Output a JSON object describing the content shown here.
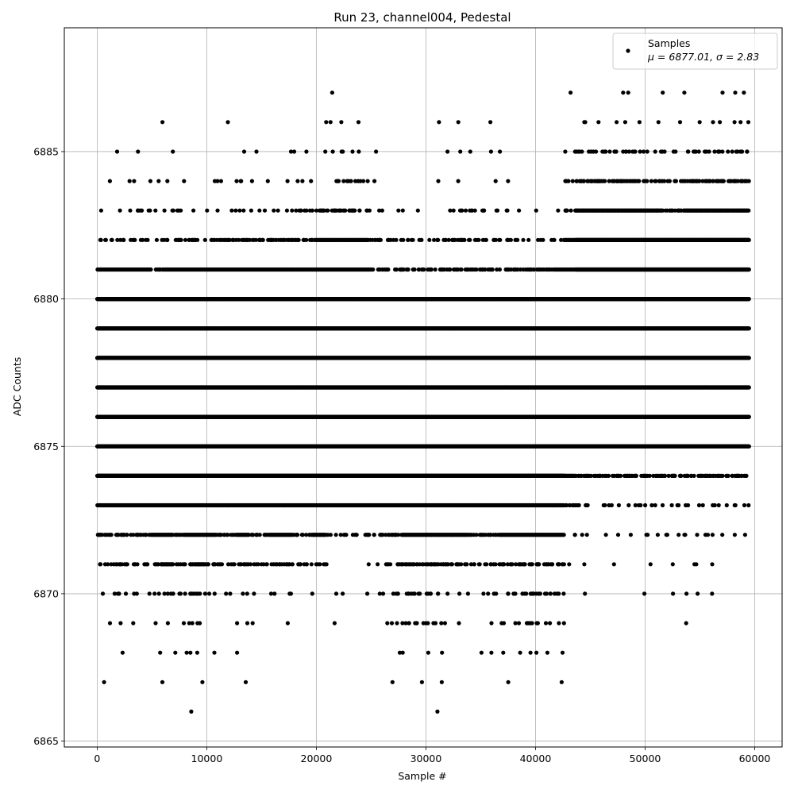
{
  "chart_data": {
    "type": "scatter",
    "title": "Run 23, channel004, Pedestal",
    "xlabel": "Sample #",
    "ylabel": "ADC Counts",
    "xlim": [
      -3000,
      62500
    ],
    "ylim": [
      6864.8,
      6889.2
    ],
    "xticks": [
      0,
      10000,
      20000,
      30000,
      40000,
      50000,
      60000
    ],
    "xtick_labels": [
      "0",
      "10000",
      "20000",
      "30000",
      "40000",
      "50000",
      "60000"
    ],
    "yticks": [
      6865,
      6870,
      6875,
      6880,
      6885
    ],
    "ytick_labels": [
      "6865",
      "6870",
      "6875",
      "6880",
      "6885"
    ],
    "grid": true,
    "legend": {
      "position": "upper right",
      "entries": [
        {
          "label": "Samples",
          "stats": "μ = 6877.01, σ = 2.83"
        }
      ]
    },
    "marker_color": "#000000",
    "n_samples": 59500,
    "bands": [
      {
        "y": 6866,
        "density": [
          0,
          0,
          0,
          0,
          0,
          0,
          0,
          0,
          1,
          0,
          0,
          0,
          0,
          0,
          0,
          0,
          0,
          0,
          0,
          0,
          0,
          0,
          0,
          0,
          0,
          0,
          0,
          0,
          0,
          0,
          0,
          1,
          0,
          0,
          0,
          0,
          0,
          0,
          0,
          0,
          0,
          0,
          0,
          0,
          0,
          0,
          0,
          0,
          0,
          0,
          0,
          0,
          0,
          0,
          0,
          0,
          0,
          0,
          0,
          0
        ]
      },
      {
        "y": 6867,
        "density": [
          1,
          0,
          0,
          0,
          0,
          1,
          0,
          0,
          0,
          1,
          0,
          0,
          0,
          1,
          0,
          0,
          0,
          0,
          0,
          0,
          0,
          0,
          0,
          0,
          0,
          0,
          0,
          1,
          0,
          1,
          0,
          1,
          0,
          0,
          0,
          0,
          0,
          1,
          0,
          0,
          0,
          0,
          1,
          0,
          0,
          0,
          0,
          0,
          0,
          0,
          0,
          0,
          0,
          0,
          0,
          0,
          0,
          0,
          0,
          0
        ]
      },
      {
        "y": 6868,
        "density": [
          0,
          0,
          1,
          0,
          0,
          1,
          0,
          1,
          2,
          1,
          1,
          0,
          1,
          0,
          0,
          0,
          0,
          0,
          0,
          0,
          0,
          0,
          0,
          0,
          0,
          0,
          0,
          1,
          1,
          0,
          1,
          1,
          0,
          0,
          0,
          1,
          1,
          1,
          1,
          1,
          1,
          1,
          1,
          0,
          0,
          0,
          0,
          0,
          0,
          0,
          0,
          0,
          0,
          0,
          0,
          0,
          0,
          0,
          0,
          0
        ]
      },
      {
        "y": 6869,
        "density": [
          0,
          1,
          1,
          1,
          0,
          1,
          1,
          1,
          2,
          2,
          0,
          0,
          1,
          1,
          1,
          0,
          0,
          1,
          0,
          0,
          0,
          1,
          0,
          0,
          0,
          0,
          1,
          2,
          3,
          3,
          3,
          2,
          1,
          1,
          0,
          0,
          1,
          2,
          2,
          3,
          3,
          2,
          2,
          0,
          0,
          0,
          0,
          0,
          0,
          0,
          0,
          0,
          0,
          0,
          1,
          0,
          0,
          0,
          0,
          0
        ]
      },
      {
        "y": 6870,
        "density": [
          1,
          2,
          2,
          2,
          1,
          2,
          3,
          2,
          3,
          3,
          2,
          1,
          1,
          2,
          1,
          0,
          2,
          2,
          0,
          1,
          0,
          1,
          1,
          0,
          1,
          0,
          2,
          3,
          3,
          3,
          3,
          2,
          1,
          1,
          1,
          2,
          2,
          2,
          2,
          3,
          4,
          3,
          3,
          0,
          1,
          0,
          0,
          0,
          0,
          0,
          1,
          0,
          1,
          0,
          1,
          1,
          1,
          0,
          0,
          0
        ]
      },
      {
        "y": 6871,
        "density": [
          3,
          3,
          4,
          3,
          3,
          4,
          5,
          3,
          4,
          5,
          4,
          3,
          3,
          4,
          3,
          3,
          4,
          4,
          3,
          3,
          3,
          2,
          0,
          0,
          1,
          1,
          3,
          3,
          4,
          4,
          4,
          4,
          4,
          4,
          3,
          3,
          3,
          4,
          4,
          4,
          4,
          4,
          4,
          1,
          1,
          0,
          0,
          1,
          0,
          0,
          1,
          0,
          1,
          0,
          1,
          1,
          1,
          0,
          0,
          0
        ]
      },
      {
        "y": 6872,
        "density": [
          4,
          4,
          4,
          4,
          4,
          5,
          5,
          4,
          5,
          5,
          5,
          4,
          4,
          5,
          4,
          4,
          5,
          5,
          4,
          4,
          5,
          3,
          3,
          3,
          3,
          3,
          4,
          4,
          5,
          5,
          5,
          5,
          5,
          5,
          4,
          4,
          4,
          5,
          5,
          5,
          5,
          5,
          5,
          2,
          1,
          1,
          1,
          1,
          0,
          1,
          2,
          1,
          2,
          1,
          2,
          2,
          2,
          1,
          1,
          1
        ]
      },
      {
        "y": 6873,
        "density": [
          5,
          5,
          5,
          5,
          5,
          5,
          5,
          5,
          5,
          5,
          5,
          5,
          5,
          5,
          5,
          5,
          5,
          5,
          5,
          5,
          5,
          5,
          5,
          5,
          5,
          5,
          5,
          5,
          5,
          5,
          5,
          5,
          5,
          5,
          5,
          5,
          5,
          5,
          5,
          5,
          5,
          5,
          5,
          4,
          3,
          2,
          2,
          2,
          2,
          2,
          2,
          2,
          2,
          2,
          2,
          2,
          2,
          2,
          2,
          2
        ]
      },
      {
        "y": 6874,
        "density": [
          6,
          6,
          6,
          6,
          6,
          6,
          6,
          6,
          6,
          6,
          6,
          6,
          6,
          6,
          6,
          6,
          6,
          6,
          6,
          6,
          6,
          6,
          6,
          6,
          6,
          6,
          6,
          6,
          6,
          6,
          6,
          6,
          6,
          6,
          6,
          6,
          6,
          6,
          6,
          6,
          6,
          6,
          6,
          5,
          4,
          4,
          4,
          4,
          4,
          4,
          4,
          4,
          4,
          4,
          4,
          4,
          4,
          4,
          4,
          4
        ]
      },
      {
        "y": 6875,
        "density": [
          6,
          6,
          6,
          6,
          6,
          6,
          6,
          6,
          6,
          6,
          6,
          6,
          6,
          6,
          6,
          6,
          6,
          6,
          6,
          6,
          6,
          6,
          6,
          6,
          6,
          6,
          6,
          6,
          6,
          6,
          6,
          6,
          6,
          6,
          6,
          6,
          6,
          6,
          6,
          6,
          6,
          6,
          6,
          6,
          6,
          6,
          6,
          6,
          6,
          6,
          6,
          6,
          6,
          6,
          6,
          6,
          6,
          6,
          6,
          6
        ]
      },
      {
        "y": 6876,
        "density": [
          6,
          6,
          6,
          6,
          6,
          6,
          6,
          6,
          6,
          6,
          6,
          6,
          6,
          6,
          6,
          6,
          6,
          6,
          6,
          6,
          6,
          6,
          6,
          6,
          6,
          6,
          6,
          6,
          6,
          6,
          6,
          6,
          6,
          6,
          6,
          6,
          6,
          6,
          6,
          6,
          6,
          6,
          6,
          6,
          6,
          6,
          6,
          6,
          6,
          6,
          6,
          6,
          6,
          6,
          6,
          6,
          6,
          6,
          6,
          6
        ]
      },
      {
        "y": 6877,
        "density": [
          6,
          6,
          6,
          6,
          6,
          6,
          6,
          6,
          6,
          6,
          6,
          6,
          6,
          6,
          6,
          6,
          6,
          6,
          6,
          6,
          6,
          6,
          6,
          6,
          6,
          6,
          6,
          6,
          6,
          6,
          6,
          6,
          6,
          6,
          6,
          6,
          6,
          6,
          6,
          6,
          6,
          6,
          6,
          6,
          6,
          6,
          6,
          6,
          6,
          6,
          6,
          6,
          6,
          6,
          6,
          6,
          6,
          6,
          6,
          6
        ]
      },
      {
        "y": 6878,
        "density": [
          6,
          6,
          6,
          6,
          6,
          6,
          6,
          6,
          6,
          6,
          6,
          6,
          6,
          6,
          6,
          6,
          6,
          6,
          6,
          6,
          6,
          6,
          6,
          6,
          6,
          6,
          6,
          6,
          6,
          6,
          6,
          6,
          6,
          6,
          6,
          6,
          6,
          6,
          6,
          6,
          6,
          6,
          6,
          6,
          6,
          6,
          6,
          6,
          6,
          6,
          6,
          6,
          6,
          6,
          6,
          6,
          6,
          6,
          6,
          6
        ]
      },
      {
        "y": 6879,
        "density": [
          6,
          6,
          6,
          6,
          6,
          6,
          6,
          6,
          6,
          6,
          6,
          6,
          6,
          6,
          6,
          6,
          6,
          6,
          6,
          6,
          6,
          6,
          6,
          6,
          6,
          6,
          6,
          6,
          6,
          6,
          6,
          6,
          6,
          6,
          6,
          6,
          6,
          6,
          6,
          6,
          6,
          6,
          6,
          6,
          6,
          6,
          6,
          6,
          6,
          6,
          6,
          6,
          6,
          6,
          6,
          6,
          6,
          6,
          6,
          6
        ]
      },
      {
        "y": 6880,
        "density": [
          6,
          6,
          6,
          6,
          6,
          6,
          6,
          6,
          6,
          6,
          6,
          6,
          6,
          6,
          6,
          6,
          6,
          6,
          6,
          6,
          6,
          6,
          6,
          6,
          6,
          6,
          6,
          6,
          6,
          6,
          6,
          6,
          6,
          6,
          6,
          6,
          6,
          6,
          6,
          6,
          6,
          6,
          6,
          6,
          6,
          6,
          6,
          6,
          6,
          6,
          6,
          6,
          6,
          6,
          6,
          6,
          6,
          6,
          6,
          6
        ]
      },
      {
        "y": 6881,
        "density": [
          5,
          5,
          5,
          5,
          5,
          4,
          5,
          5,
          5,
          5,
          5,
          5,
          5,
          5,
          5,
          5,
          5,
          5,
          5,
          5,
          5,
          5,
          5,
          5,
          5,
          4,
          4,
          4,
          4,
          4,
          4,
          4,
          4,
          4,
          4,
          4,
          4,
          4,
          4,
          4,
          4,
          4,
          5,
          5,
          6,
          6,
          6,
          6,
          6,
          6,
          6,
          6,
          6,
          6,
          6,
          6,
          6,
          6,
          6,
          6
        ]
      },
      {
        "y": 6882,
        "density": [
          3,
          3,
          3,
          3,
          3,
          2,
          3,
          4,
          4,
          3,
          3,
          4,
          4,
          4,
          4,
          4,
          4,
          4,
          4,
          4,
          5,
          5,
          5,
          5,
          5,
          4,
          3,
          3,
          3,
          3,
          2,
          3,
          4,
          4,
          3,
          3,
          3,
          3,
          3,
          2,
          2,
          2,
          3,
          5,
          6,
          6,
          6,
          6,
          6,
          6,
          6,
          6,
          6,
          6,
          6,
          6,
          6,
          6,
          6,
          6
        ]
      },
      {
        "y": 6883,
        "density": [
          1,
          0,
          1,
          3,
          3,
          1,
          2,
          3,
          1,
          0,
          1,
          1,
          2,
          2,
          2,
          1,
          2,
          2,
          3,
          3,
          4,
          4,
          4,
          4,
          3,
          2,
          1,
          1,
          1,
          1,
          0,
          0,
          2,
          3,
          3,
          3,
          2,
          2,
          1,
          0,
          1,
          0,
          1,
          4,
          5,
          5,
          5,
          5,
          5,
          5,
          5,
          5,
          4,
          4,
          5,
          5,
          5,
          5,
          5,
          5
        ]
      },
      {
        "y": 6884,
        "density": [
          0,
          1,
          1,
          1,
          1,
          1,
          1,
          1,
          0,
          0,
          1,
          2,
          1,
          2,
          1,
          1,
          0,
          1,
          2,
          1,
          0,
          0,
          3,
          3,
          3,
          1,
          0,
          0,
          0,
          0,
          0,
          1,
          0,
          1,
          0,
          0,
          1,
          1,
          0,
          0,
          0,
          0,
          0,
          3,
          4,
          4,
          4,
          4,
          4,
          4,
          3,
          3,
          3,
          3,
          4,
          4,
          4,
          4,
          4,
          4
        ]
      },
      {
        "y": 6885,
        "density": [
          0,
          1,
          0,
          1,
          0,
          0,
          1,
          0,
          0,
          0,
          0,
          0,
          0,
          1,
          1,
          0,
          0,
          1,
          1,
          1,
          1,
          1,
          2,
          1,
          1,
          1,
          0,
          0,
          0,
          0,
          0,
          0,
          1,
          1,
          1,
          0,
          1,
          1,
          0,
          0,
          0,
          0,
          0,
          2,
          3,
          3,
          3,
          3,
          3,
          3,
          2,
          2,
          2,
          2,
          3,
          3,
          3,
          3,
          3,
          3
        ]
      },
      {
        "y": 6886,
        "density": [
          0,
          0,
          0,
          0,
          0,
          0,
          1,
          0,
          0,
          0,
          0,
          0,
          1,
          0,
          0,
          0,
          0,
          0,
          0,
          0,
          0,
          2,
          1,
          0,
          1,
          0,
          0,
          0,
          0,
          0,
          0,
          1,
          0,
          1,
          0,
          0,
          1,
          0,
          0,
          0,
          0,
          0,
          0,
          0,
          2,
          0,
          1,
          1,
          1,
          1,
          0,
          1,
          0,
          1,
          0,
          1,
          1,
          1,
          1,
          2
        ]
      },
      {
        "y": 6887,
        "density": [
          0,
          0,
          0,
          0,
          0,
          0,
          0,
          0,
          0,
          0,
          0,
          0,
          0,
          0,
          0,
          0,
          0,
          0,
          0,
          0,
          0,
          1,
          0,
          0,
          0,
          0,
          0,
          0,
          0,
          0,
          0,
          0,
          0,
          0,
          0,
          0,
          0,
          0,
          0,
          0,
          0,
          0,
          0,
          1,
          0,
          0,
          0,
          0,
          2,
          0,
          0,
          0,
          1,
          0,
          1,
          0,
          0,
          1,
          1,
          1
        ]
      }
    ]
  }
}
